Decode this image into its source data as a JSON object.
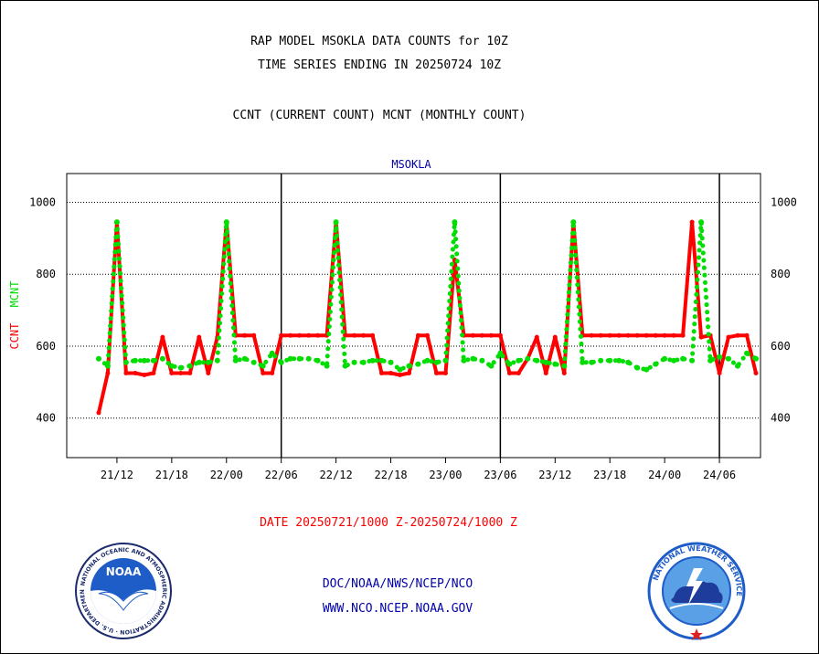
{
  "header": {
    "title": "RAP MODEL MSOKLA DATA COUNTS for 10Z",
    "subtitle": "TIME SERIES ENDING IN 20250724 10Z",
    "legend_line": "CCNT (CURRENT COUNT) MCNT (MONTHLY COUNT)"
  },
  "footer": {
    "date_range": "DATE 20250721/1000 Z-20250724/1000 Z",
    "org_line": "DOC/NOAA/NWS/NCEP/NCO",
    "url_line": "WWW.NCO.NCEP.NOAA.GOV"
  },
  "logos": {
    "noaa": {
      "label": "NOAA",
      "ring_text": "NATIONAL OCEANIC AND ATMOSPHERIC ADMINISTRATION · U.S. DEPARTMENT OF COMMERCE"
    },
    "nws": {
      "ring_text": "NATIONAL WEATHER SERVICE"
    }
  },
  "colors": {
    "ccnt": "#ff0000",
    "mcnt": "#00dd00",
    "station_label": "#0000aa"
  },
  "chart_data": {
    "type": "line",
    "title": "MSOKLA",
    "ylabel_parts": [
      {
        "text": "CCNT",
        "color": "#ff0000"
      },
      {
        "text": "MCNT",
        "color": "#00dd00"
      }
    ],
    "ylim": [
      290,
      1080
    ],
    "yticks": [
      400,
      600,
      800,
      1000
    ],
    "ytick_labels": [
      "400",
      "600",
      "800",
      "1000"
    ],
    "xlim": [
      -3.5,
      72.5
    ],
    "xticks": [
      2,
      8,
      14,
      20,
      26,
      32,
      38,
      44,
      50,
      56,
      62,
      68
    ],
    "xtick_labels": [
      "21/12",
      "21/18",
      "22/00",
      "22/06",
      "22/12",
      "22/18",
      "23/00",
      "23/06",
      "23/12",
      "23/18",
      "24/00",
      "24/06"
    ],
    "day_boundaries": [
      20,
      44,
      68
    ],
    "grid": "horizontal dotted",
    "x": [
      0,
      1,
      2,
      3,
      4,
      5,
      6,
      7,
      8,
      9,
      10,
      11,
      12,
      13,
      14,
      15,
      16,
      17,
      18,
      19,
      20,
      21,
      22,
      23,
      24,
      25,
      26,
      27,
      28,
      29,
      30,
      31,
      32,
      33,
      34,
      35,
      36,
      37,
      38,
      39,
      40,
      41,
      42,
      43,
      44,
      45,
      46,
      47,
      48,
      49,
      50,
      51,
      52,
      53,
      54,
      55,
      56,
      57,
      58,
      59,
      60,
      61,
      62,
      63,
      64,
      65,
      66,
      67,
      68,
      69,
      70,
      71,
      72
    ],
    "series": [
      {
        "name": "CCNT",
        "color": "#ff0000",
        "style": "solid",
        "values": [
          415,
          525,
          945,
          525,
          525,
          520,
          525,
          625,
          525,
          525,
          525,
          625,
          525,
          625,
          945,
          630,
          630,
          630,
          525,
          525,
          630,
          630,
          630,
          630,
          630,
          630,
          945,
          630,
          630,
          630,
          630,
          525,
          525,
          520,
          525,
          630,
          630,
          525,
          525,
          840,
          630,
          630,
          630,
          630,
          630,
          525,
          525,
          565,
          625,
          525,
          625,
          525,
          945,
          630,
          630,
          630,
          630,
          630,
          630,
          630,
          630,
          630,
          630,
          630,
          630,
          945,
          625,
          630,
          525,
          625,
          630,
          630,
          525
        ]
      },
      {
        "name": "MCNT",
        "color": "#00dd00",
        "style": "dotted",
        "values": [
          565,
          545,
          945,
          555,
          560,
          560,
          560,
          565,
          545,
          540,
          545,
          555,
          555,
          560,
          945,
          560,
          565,
          555,
          545,
          580,
          555,
          565,
          565,
          565,
          560,
          545,
          945,
          545,
          555,
          555,
          560,
          560,
          555,
          535,
          545,
          550,
          560,
          555,
          560,
          945,
          560,
          565,
          560,
          545,
          580,
          550,
          560,
          565,
          560,
          555,
          550,
          545,
          945,
          555,
          555,
          560,
          560,
          560,
          555,
          540,
          535,
          550,
          565,
          560,
          565,
          560,
          945,
          560,
          570,
          565,
          545,
          580,
          565
        ]
      }
    ]
  }
}
